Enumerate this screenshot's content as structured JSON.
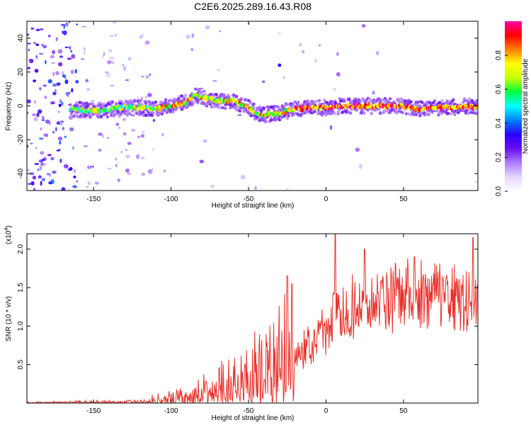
{
  "title": "C2E6.2025.289.16.43.R08",
  "chart_data": [
    {
      "type": "heatmap",
      "xlabel": "Height of straight line (km)",
      "ylabel": "Frequency (Hz)",
      "xlim": [
        -193,
        98
      ],
      "ylim": [
        -50,
        50
      ],
      "xticks": [
        -150,
        -100,
        -50,
        0,
        50
      ],
      "yticks": [
        -40,
        -20,
        0,
        20,
        40
      ],
      "colorbar": {
        "label": "Normalized spectral amplitude",
        "range": [
          0.0,
          1.0
        ],
        "ticks": [
          0.0,
          0.2,
          0.4,
          0.6,
          0.8
        ],
        "tick_labels": [
          "0.0",
          "0.2",
          "0.4",
          "0.6",
          "0.8"
        ],
        "colors": [
          "#ffffff",
          "#e6d6ff",
          "#b07dff",
          "#6a0ff0",
          "#2a00ff",
          "#0080ff",
          "#00ffff",
          "#00ff40",
          "#c8ff00",
          "#ffff00",
          "#ff8000",
          "#ff0000",
          "#ff00a0"
        ]
      },
      "ridge": {
        "x": [
          -160,
          -150,
          -140,
          -130,
          -120,
          -110,
          -100,
          -90,
          -85,
          -80,
          -70,
          -60,
          -50,
          -45,
          -40,
          -35,
          -30,
          -25,
          -20,
          -10,
          0,
          10,
          20,
          30,
          40,
          50,
          60,
          70,
          80,
          90,
          98
        ],
        "freq": [
          -2,
          -3,
          -2,
          -1,
          -1,
          -2,
          0,
          2,
          6,
          5,
          3,
          3,
          -1,
          -4,
          -5,
          -5,
          -4,
          -3,
          -2,
          -1,
          -1,
          0,
          0,
          0,
          0,
          0,
          -2,
          -1,
          -1,
          0,
          -1
        ]
      },
      "isolated_peak": {
        "x": -30,
        "freq": 24
      }
    },
    {
      "type": "line",
      "xlabel": "Height of straight line (km)",
      "ylabel": "SNR (10 * v/v)",
      "scale_label": "(x10",
      "scale_exponent": "4",
      "xlim": [
        -193,
        98
      ],
      "ylim": [
        0,
        2.2
      ],
      "xticks": [
        -150,
        -100,
        -50,
        0,
        50
      ],
      "yticks": [
        0.5,
        1.0,
        1.5,
        2.0
      ],
      "ytick_labels": [
        "0.5",
        "1.0",
        "1.5",
        "2.0"
      ],
      "color": "#e8322c",
      "series": [
        {
          "name": "SNR",
          "x": [
            -193,
            -180,
            -160,
            -140,
            -120,
            -110,
            -100,
            -90,
            -80,
            -70,
            -60,
            -50,
            -40,
            -30,
            -25,
            -20,
            -10,
            0,
            5,
            10,
            20,
            30,
            40,
            50,
            60,
            70,
            80,
            90,
            98
          ],
          "envelope": [
            0.01,
            0.01,
            0.02,
            0.02,
            0.03,
            0.06,
            0.09,
            0.14,
            0.2,
            0.27,
            0.35,
            0.45,
            0.55,
            0.65,
            0.75,
            0.72,
            0.85,
            1.05,
            1.3,
            1.35,
            1.45,
            1.55,
            1.58,
            1.6,
            1.6,
            1.58,
            1.55,
            1.5,
            1.48
          ],
          "peaks": [
            {
              "x": -25,
              "y": 1.65
            },
            {
              "x": -22,
              "y": 1.55
            },
            {
              "x": 6,
              "y": 2.2
            },
            {
              "x": 25,
              "y": 2.0
            },
            {
              "x": 57,
              "y": 1.9
            },
            {
              "x": 95,
              "y": 2.15
            }
          ]
        }
      ]
    }
  ]
}
